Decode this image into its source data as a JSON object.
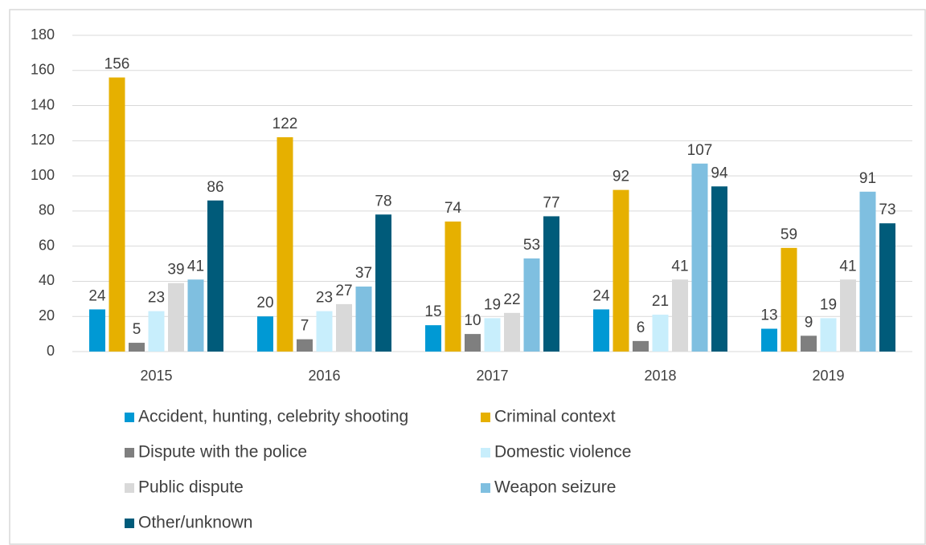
{
  "chart_data": {
    "type": "bar",
    "categories": [
      "2015",
      "2016",
      "2017",
      "2018",
      "2019"
    ],
    "series": [
      {
        "name": "Accident, hunting, celebrity shooting",
        "color": "#0099d4",
        "values": [
          24,
          20,
          15,
          24,
          13
        ]
      },
      {
        "name": "Criminal context",
        "color": "#e6b000",
        "values": [
          156,
          122,
          74,
          92,
          59
        ]
      },
      {
        "name": "Dispute with the police",
        "color": "#7f7f7f",
        "values": [
          5,
          7,
          10,
          6,
          9
        ]
      },
      {
        "name": "Domestic violence",
        "color": "#c8eefc",
        "values": [
          23,
          23,
          19,
          21,
          19
        ]
      },
      {
        "name": "Public dispute",
        "color": "#d9d9d9",
        "values": [
          39,
          27,
          22,
          41,
          41
        ]
      },
      {
        "name": "Weapon seizure",
        "color": "#7fbfe0",
        "values": [
          41,
          37,
          53,
          107,
          91
        ]
      },
      {
        "name": "Other/unknown",
        "color": "#005b7a",
        "values": [
          86,
          78,
          77,
          94,
          73
        ]
      }
    ],
    "ylim": [
      0,
      180
    ],
    "yticks": [
      0,
      20,
      40,
      60,
      80,
      100,
      120,
      140,
      160,
      180
    ],
    "grid": true,
    "legend": "bottom"
  }
}
